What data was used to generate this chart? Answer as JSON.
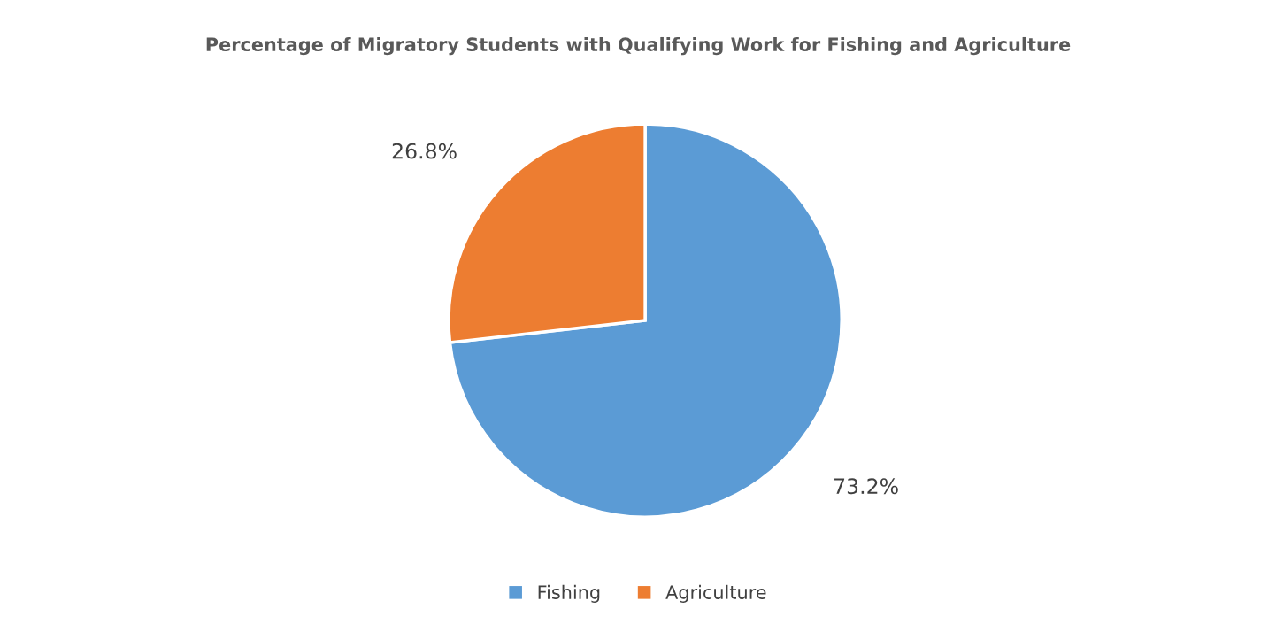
{
  "chart_data": {
    "type": "pie",
    "title": "Percentage of Migratory Students with Qualifying Work for Fishing and Agriculture",
    "categories": [
      "Fishing",
      "Agriculture"
    ],
    "values": [
      73.2,
      26.8
    ],
    "colors": [
      "#5b9bd5",
      "#ed7d31"
    ],
    "value_labels": [
      "73.2%",
      "26.8%"
    ],
    "legend": "bottom"
  }
}
